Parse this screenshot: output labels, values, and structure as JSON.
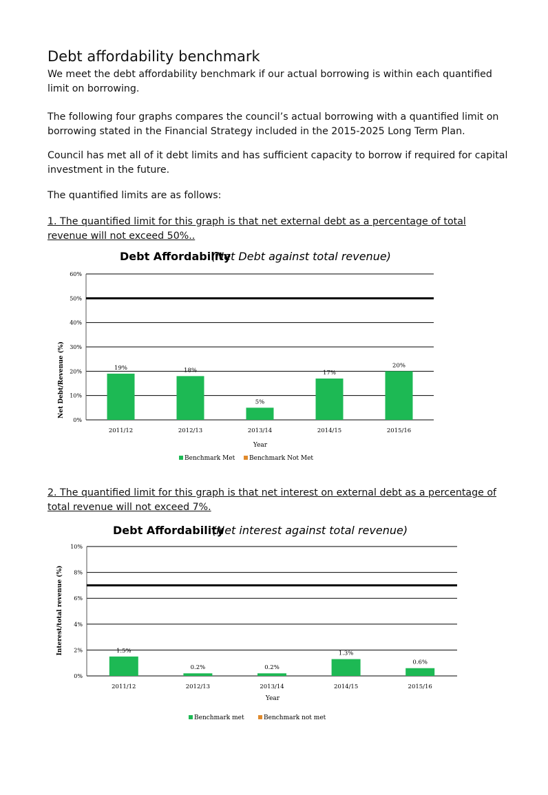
{
  "heading": "Debt affordability benchmark",
  "paragraphs": [
    "We meet the debt affordability benchmark if our actual borrowing is within each quantified limit on borrowing.",
    "The following four graphs compares the council’s actual borrowing with a quantified limit on borrowing stated in the Financial Strategy included in the 2015-2025 Long Term Plan.",
    "Council has met all of it debt limits and has sufficient capacity to borrow if required for capital investment in the future.",
    "The quantified limits are as follows:"
  ],
  "limit_1_text": "1. The quantified limit for this graph is that net external debt as a percentage of total revenue will not exceed 50%..",
  "limit_2_text": "2. The quantified limit for this graph is that net interest on external debt as a percentage of total revenue will not exceed 7%.",
  "colors": {
    "met": "#1db954",
    "not_met": "#e08a2c",
    "grid": "#000000",
    "limit": "#000000"
  },
  "chart_data": [
    {
      "type": "bar",
      "title": "Debt Affordability",
      "subtitle": "(Net Debt against total revenue)",
      "xlabel": "Year",
      "ylabel": "Net Debt/Revenue  (%)",
      "categories": [
        "2011/12",
        "2012/13",
        "2013/14",
        "2014/15",
        "2015/16"
      ],
      "values": [
        19,
        18,
        5,
        17,
        20
      ],
      "data_labels": [
        "19%",
        "18%",
        "5%",
        "17%",
        "20%"
      ],
      "yticks": [
        "0%",
        "10%",
        "20%",
        "30%",
        "40%",
        "50%",
        "60%"
      ],
      "ylim": [
        0,
        60
      ],
      "limit": 50,
      "grid": true,
      "legend": [
        "Benchmark Met",
        "Benchmark Not Met"
      ],
      "legend_placement": "bottom"
    },
    {
      "type": "bar",
      "title": "Debt Affordability",
      "subtitle": "(Net interest against total revenue)",
      "xlabel": "Year",
      "ylabel": "Interest/total  revenue  (%)",
      "categories": [
        "2011/12",
        "2012/13",
        "2013/14",
        "2014/15",
        "2015/16"
      ],
      "values": [
        1.5,
        0.2,
        0.2,
        1.3,
        0.6
      ],
      "data_labels": [
        "1.5%",
        "0.2%",
        "0.2%",
        "1.3%",
        "0.6%"
      ],
      "yticks": [
        "0%",
        "2%",
        "4%",
        "6%",
        "8%",
        "10%"
      ],
      "ylim": [
        0,
        10
      ],
      "limit": 7,
      "grid": true,
      "legend": [
        "Benchmark met",
        "Benchmark not met"
      ],
      "legend_placement": "bottom"
    }
  ]
}
